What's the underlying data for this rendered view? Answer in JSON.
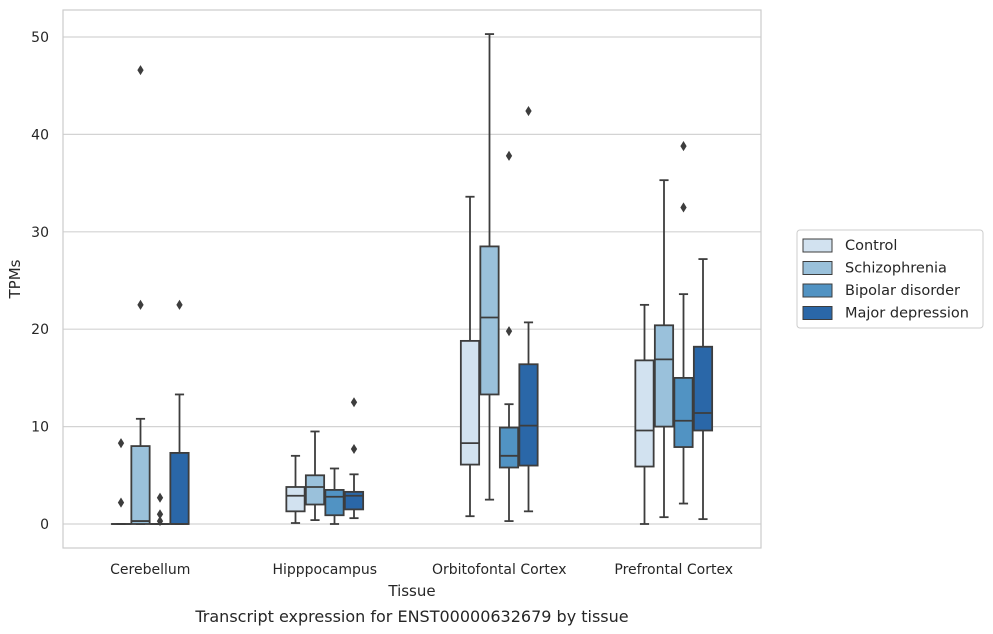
{
  "chart_data": {
    "type": "box",
    "title": "",
    "caption": "Transcript expression for ENST00000632679 by tissue",
    "xlabel": "Tissue",
    "ylabel": "TPMs",
    "ylim": [
      -2.5,
      53
    ],
    "yticks": [
      0,
      10,
      20,
      30,
      40,
      50
    ],
    "grid": "horizontal",
    "legend_position": "right",
    "categories": [
      "Cerebellum",
      "Hipppocampus",
      "Orbitofontal Cortex",
      "Prefrontal Cortex"
    ],
    "series": [
      {
        "name": "Control",
        "color": "#d2e2f0",
        "boxes": [
          {
            "whislo": 0,
            "q1": 0,
            "med": 0,
            "q3": 0,
            "whishi": 0,
            "fliers": [
              8.3,
              2.2
            ]
          },
          {
            "whislo": 0.1,
            "q1": 1.3,
            "med": 2.9,
            "q3": 3.8,
            "whishi": 7.0,
            "fliers": []
          },
          {
            "whislo": 0.8,
            "q1": 6.1,
            "med": 8.3,
            "q3": 18.8,
            "whishi": 33.6,
            "fliers": []
          },
          {
            "whislo": 0,
            "q1": 5.9,
            "med": 9.6,
            "q3": 16.8,
            "whishi": 22.5,
            "fliers": []
          }
        ]
      },
      {
        "name": "Schizophrenia",
        "color": "#9ac1db",
        "boxes": [
          {
            "whislo": 0,
            "q1": 0,
            "med": 0.3,
            "q3": 8.0,
            "whishi": 10.8,
            "fliers": [
              22.5,
              46.6
            ]
          },
          {
            "whislo": 0.4,
            "q1": 2.0,
            "med": 3.8,
            "q3": 5.0,
            "whishi": 9.5,
            "fliers": []
          },
          {
            "whislo": 2.5,
            "q1": 13.3,
            "med": 21.2,
            "q3": 28.5,
            "whishi": 50.3,
            "fliers": []
          },
          {
            "whislo": 0.7,
            "q1": 10.0,
            "med": 16.9,
            "q3": 20.4,
            "whishi": 35.3,
            "fliers": []
          }
        ]
      },
      {
        "name": "Bipolar disorder",
        "color": "#5193c3",
        "boxes": [
          {
            "whislo": 0,
            "q1": 0,
            "med": 0,
            "q3": 0,
            "whishi": 0,
            "fliers": [
              2.7,
              1.0,
              0.3
            ]
          },
          {
            "whislo": 0,
            "q1": 0.9,
            "med": 2.8,
            "q3": 3.5,
            "whishi": 5.7,
            "fliers": []
          },
          {
            "whislo": 0.3,
            "q1": 5.8,
            "med": 7.0,
            "q3": 9.9,
            "whishi": 12.3,
            "fliers": [
              19.8,
              37.8
            ]
          },
          {
            "whislo": 2.1,
            "q1": 7.9,
            "med": 10.6,
            "q3": 15.0,
            "whishi": 23.6,
            "fliers": [
              32.5,
              38.8
            ]
          }
        ]
      },
      {
        "name": "Major depression",
        "color": "#2a67a8",
        "boxes": [
          {
            "whislo": 0,
            "q1": 0,
            "med": 0,
            "q3": 7.3,
            "whishi": 13.3,
            "fliers": [
              22.5
            ]
          },
          {
            "whislo": 0.6,
            "q1": 1.5,
            "med": 2.9,
            "q3": 3.3,
            "whishi": 5.1,
            "fliers": [
              7.7,
              12.5
            ]
          },
          {
            "whislo": 1.3,
            "q1": 6.0,
            "med": 10.1,
            "q3": 16.4,
            "whishi": 20.7,
            "fliers": [
              42.4
            ]
          },
          {
            "whislo": 0.5,
            "q1": 9.6,
            "med": 11.4,
            "q3": 18.2,
            "whishi": 27.2,
            "fliers": []
          }
        ]
      }
    ]
  }
}
